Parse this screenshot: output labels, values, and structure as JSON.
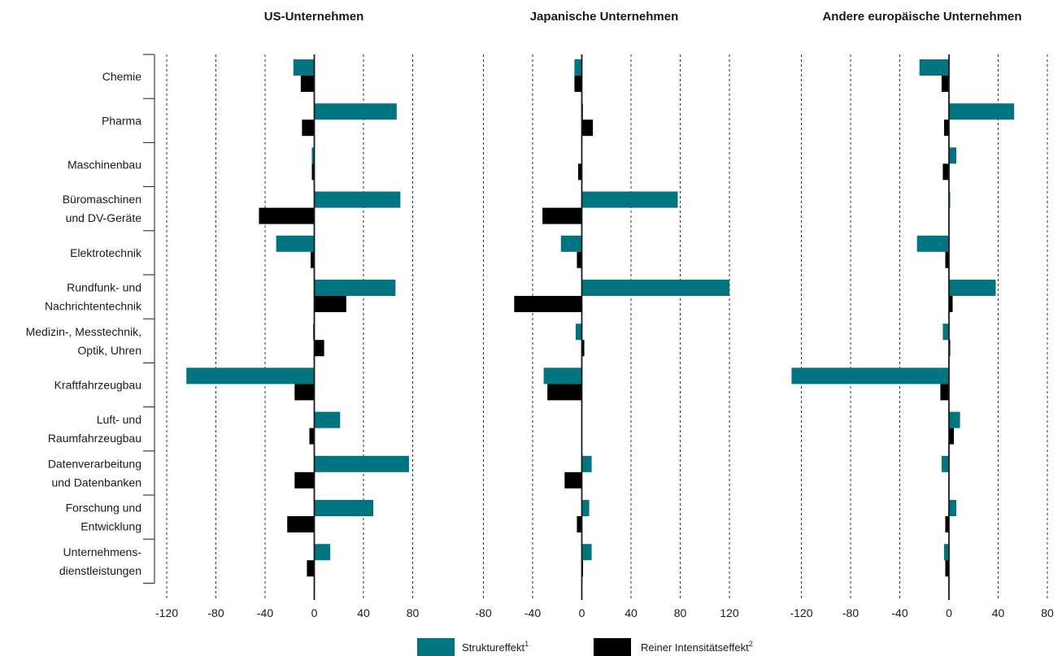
{
  "chart_data": {
    "type": "bar",
    "orientation": "horizontal",
    "categories": [
      [
        "Chemie"
      ],
      [
        "Pharma"
      ],
      [
        "Maschinenbau"
      ],
      [
        "Büromaschinen",
        "und DV-Geräte"
      ],
      [
        "Elektrotechnik"
      ],
      [
        "Rundfunk- und",
        "Nachrichtentechnik"
      ],
      [
        "Medizin-, Messtechnik,",
        "Optik, Uhren"
      ],
      [
        "Kraftfahrzeugbau"
      ],
      [
        "Luft- und",
        "Raumfahrzeugbau"
      ],
      [
        "Datenverarbeitung",
        "und Datenbanken"
      ],
      [
        "Forschung und",
        "Entwicklung"
      ],
      [
        "Unternehmens-",
        "dienstleistungen"
      ]
    ],
    "series_legend": [
      {
        "name": "Struktureffekt",
        "sup": "1",
        "color": "#00757f"
      },
      {
        "name": "Reiner Intensitätseffekt",
        "sup": "2",
        "color": "#000000"
      }
    ],
    "panels": [
      {
        "title": "US-Unternehmen",
        "xlim": [
          -120,
          80
        ],
        "ticks": [
          -120,
          -80,
          -40,
          0,
          40,
          80
        ],
        "tick_labels": [
          "-120",
          "-80",
          "-40",
          "0",
          "40",
          "80"
        ],
        "grid": true,
        "struktur": [
          -17,
          67,
          -2,
          70,
          -31,
          66,
          -1,
          -104,
          21,
          77,
          48,
          13
        ],
        "intensitaet": [
          -11,
          -10,
          -2,
          -45,
          -3,
          26,
          8,
          -16,
          -4,
          -16,
          -22,
          -6
        ]
      },
      {
        "title": "Japanische Unternehmen",
        "xlim": [
          -80,
          120
        ],
        "ticks": [
          -80,
          -40,
          0,
          40,
          80,
          120
        ],
        "tick_labels": [
          "-80",
          "-40",
          "0",
          "40",
          "80",
          "120"
        ],
        "grid": true,
        "struktur": [
          -6,
          1,
          0,
          78,
          -17,
          120,
          -5,
          -31,
          0,
          8,
          6,
          8
        ],
        "intensitaet": [
          -6,
          9,
          -3,
          -32,
          -4,
          -55,
          2,
          -28,
          0,
          -14,
          -4,
          1
        ]
      },
      {
        "title": "Andere europäische Unternehmen",
        "xlim": [
          -130,
          80
        ],
        "ticks": [
          -120,
          -80,
          -40,
          0,
          40,
          80
        ],
        "tick_labels": [
          "-120",
          "-80",
          "-40",
          "0",
          "40",
          "80"
        ],
        "grid": true,
        "struktur": [
          -24,
          53,
          6,
          1,
          -26,
          38,
          -5,
          -128,
          9,
          -6,
          6,
          -4
        ],
        "intensitaet": [
          -6,
          -4,
          -5,
          0,
          -3,
          3,
          1,
          -7,
          4,
          0,
          -3,
          -3
        ]
      }
    ],
    "legend_position": "bottom-center"
  }
}
